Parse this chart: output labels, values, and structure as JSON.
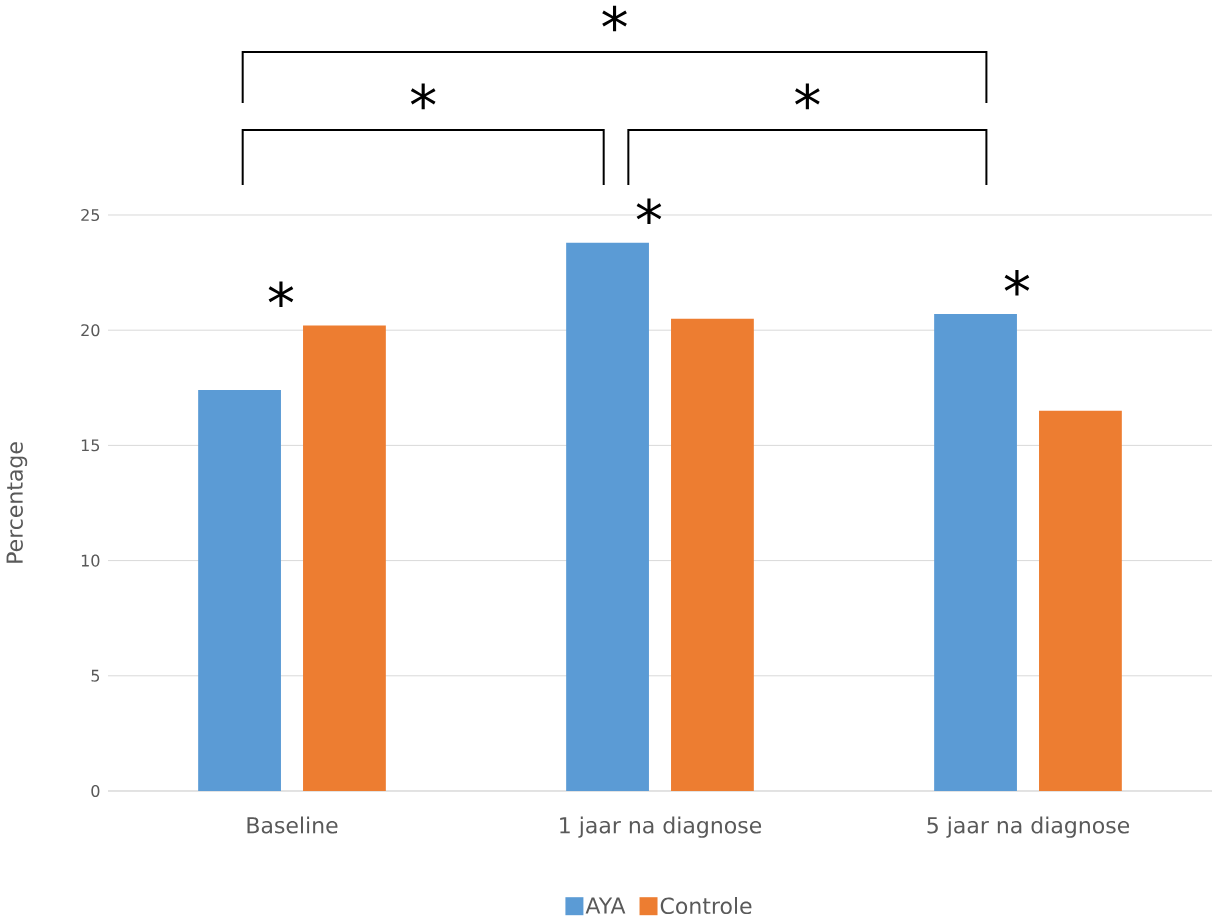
{
  "chart_data": {
    "type": "bar",
    "ylabel": "Percentage",
    "categories": [
      "Baseline",
      "1 jaar na diagnose",
      "5 jaar na diagnose"
    ],
    "series": [
      {
        "name": "AYA",
        "color": "#5b9bd5",
        "values": [
          17.4,
          23.8,
          20.7
        ]
      },
      {
        "name": "Controle",
        "color": "#ed7d31",
        "values": [
          20.2,
          20.5,
          16.5
        ]
      }
    ],
    "ylim": [
      0,
      25
    ],
    "yticks": [
      0,
      5,
      10,
      15,
      20,
      25
    ],
    "grid": "y",
    "legend": "bottom",
    "annotations": [
      "*",
      "*",
      "*",
      "*",
      "*",
      "*"
    ]
  }
}
